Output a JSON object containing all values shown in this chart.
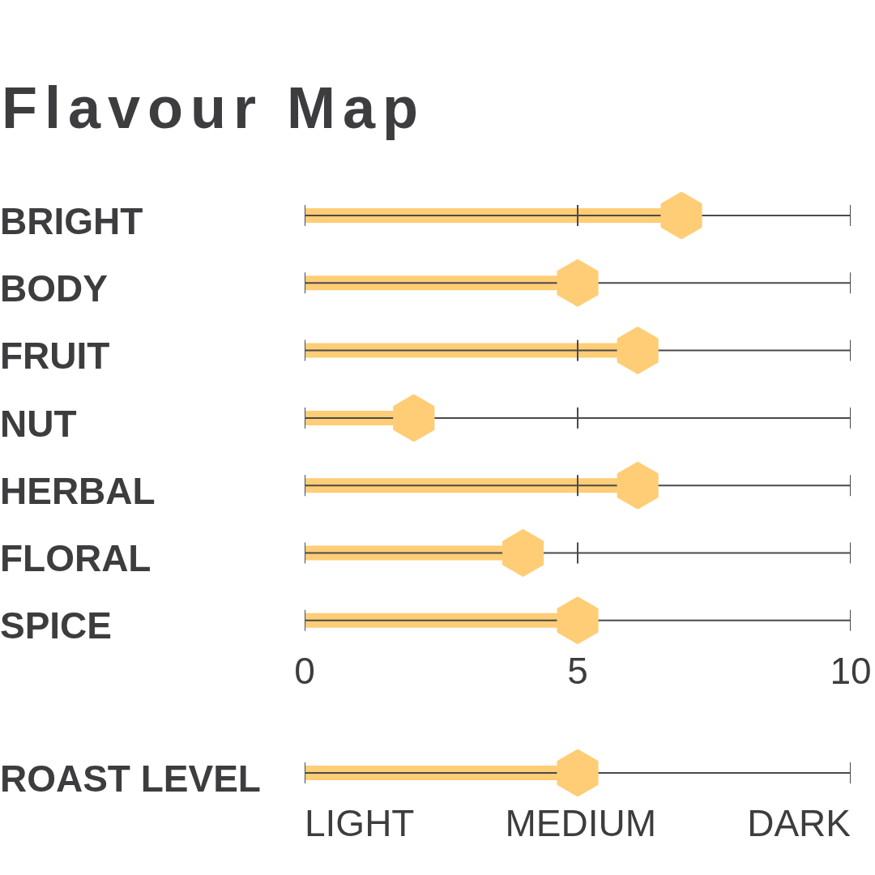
{
  "chart_data": [
    {
      "type": "lollipop",
      "title": "Flavour Map",
      "orientation": "horizontal",
      "categories": [
        "BRIGHT",
        "BODY",
        "FRUIT",
        "NUT",
        "HERBAL",
        "FLORAL",
        "SPICE"
      ],
      "values": [
        6.9,
        5,
        6.1,
        2,
        6.1,
        4,
        5
      ],
      "color": "#fecd76",
      "xlim": [
        0,
        10
      ],
      "xticks": [
        0,
        5,
        10
      ],
      "grid": true
    },
    {
      "type": "lollipop",
      "orientation": "horizontal",
      "categories": [
        "ROAST LEVEL"
      ],
      "values": [
        5
      ],
      "color": "#fecd76",
      "xlim": [
        0,
        10
      ],
      "xticks": [
        0,
        5,
        10
      ],
      "tick_labels": "y",
      "grid": true,
      "annotations": [
        "LIGHT",
        "MEDIUM",
        "DARK"
      ]
    }
  ]
}
